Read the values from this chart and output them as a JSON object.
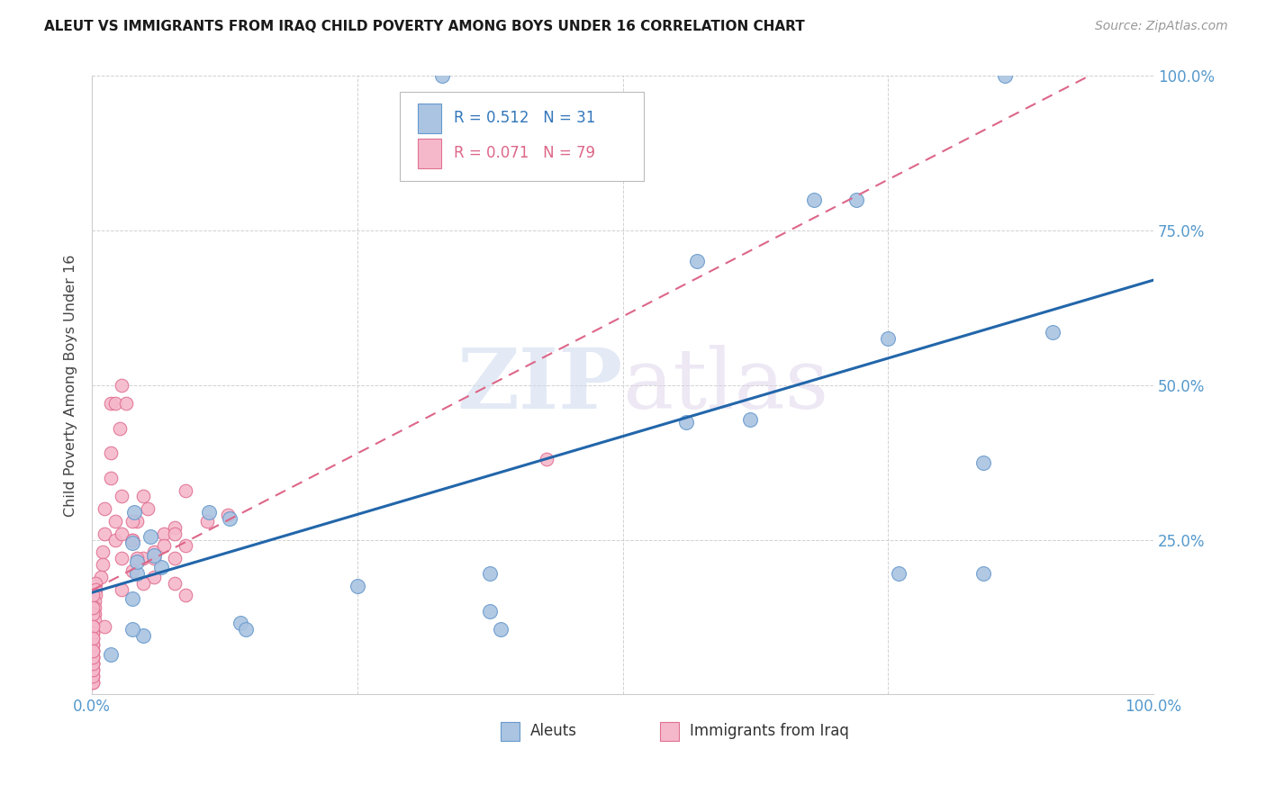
{
  "title": "ALEUT VS IMMIGRANTS FROM IRAQ CHILD POVERTY AMONG BOYS UNDER 16 CORRELATION CHART",
  "source": "Source: ZipAtlas.com",
  "ylabel": "Child Poverty Among Boys Under 16",
  "xlim": [
    0,
    1
  ],
  "ylim": [
    0,
    1
  ],
  "aleut_color": "#aac4e2",
  "aleut_edge_color": "#6699cc",
  "iraq_color": "#f5b8cb",
  "iraq_edge_color": "#e07090",
  "trend_aleut_color": "#2266aa",
  "trend_iraq_color": "#dd6688",
  "legend_aleut_label": "Aleuts",
  "legend_iraq_label": "Immigrants from Iraq",
  "watermark_zip": "ZIP",
  "watermark_atlas": "atlas",
  "aleut_x": [
    0.33,
    0.86,
    0.14,
    0.145,
    0.04,
    0.055,
    0.065,
    0.038,
    0.042,
    0.038,
    0.058,
    0.56,
    0.68,
    0.57,
    0.72,
    0.75,
    0.905,
    0.25,
    0.84,
    0.76,
    0.84,
    0.62,
    0.375,
    0.385,
    0.375,
    0.13,
    0.042,
    0.11,
    0.048,
    0.018,
    0.038
  ],
  "aleut_y": [
    1.0,
    1.0,
    0.115,
    0.105,
    0.295,
    0.255,
    0.205,
    0.245,
    0.195,
    0.155,
    0.225,
    0.44,
    0.8,
    0.7,
    0.8,
    0.575,
    0.585,
    0.175,
    0.375,
    0.195,
    0.195,
    0.445,
    0.135,
    0.105,
    0.195,
    0.285,
    0.215,
    0.295,
    0.095,
    0.065,
    0.105
  ],
  "iraq_x": [
    0.018,
    0.022,
    0.028,
    0.032,
    0.026,
    0.018,
    0.018,
    0.012,
    0.012,
    0.01,
    0.01,
    0.008,
    0.003,
    0.003,
    0.003,
    0.002,
    0.002,
    0.002,
    0.002,
    0.001,
    0.001,
    0.001,
    0.001,
    0.001,
    0.001,
    0.048,
    0.042,
    0.038,
    0.038,
    0.048,
    0.052,
    0.068,
    0.058,
    0.058,
    0.088,
    0.078,
    0.078,
    0.078,
    0.088,
    0.042,
    0.012,
    0.022,
    0.022,
    0.028,
    0.028,
    0.028,
    0.028,
    0.038,
    0.038,
    0.048,
    0.058,
    0.068,
    0.078,
    0.088,
    0.108,
    0.128,
    0.428,
    0.001,
    0.001,
    0.001,
    0.001,
    0.001,
    0.001,
    0.001,
    0.001,
    0.001,
    0.001,
    0.001,
    0.001,
    0.001,
    0.001,
    0.001,
    0.001,
    0.001,
    0.001,
    0.001,
    0.001
  ],
  "iraq_y": [
    0.47,
    0.47,
    0.5,
    0.47,
    0.43,
    0.39,
    0.35,
    0.3,
    0.26,
    0.23,
    0.21,
    0.19,
    0.18,
    0.17,
    0.16,
    0.15,
    0.14,
    0.13,
    0.12,
    0.11,
    0.1,
    0.09,
    0.08,
    0.07,
    0.06,
    0.32,
    0.28,
    0.28,
    0.25,
    0.22,
    0.3,
    0.26,
    0.22,
    0.19,
    0.33,
    0.27,
    0.22,
    0.18,
    0.16,
    0.22,
    0.11,
    0.28,
    0.25,
    0.32,
    0.26,
    0.22,
    0.17,
    0.25,
    0.2,
    0.18,
    0.23,
    0.24,
    0.26,
    0.24,
    0.28,
    0.29,
    0.38,
    0.05,
    0.04,
    0.03,
    0.02,
    0.07,
    0.06,
    0.1,
    0.08,
    0.13,
    0.11,
    0.16,
    0.14,
    0.09,
    0.05,
    0.02,
    0.03,
    0.04,
    0.05,
    0.06,
    0.07
  ],
  "background_color": "#ffffff",
  "grid_color": "#cccccc"
}
